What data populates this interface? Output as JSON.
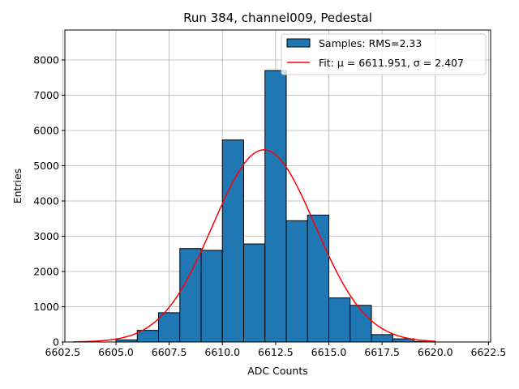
{
  "chart_data": {
    "type": "bar",
    "title": "Run 384, channel009, Pedestal",
    "xlabel": "ADC Counts",
    "ylabel": "Entries",
    "xlim": [
      6602.6,
      6622.6
    ],
    "ylim": [
      0,
      8850
    ],
    "grid": true,
    "legend_position": "top-right",
    "bin_width": 1,
    "bins": [
      {
        "left": 6605,
        "value": 60
      },
      {
        "left": 6606,
        "value": 330
      },
      {
        "left": 6607,
        "value": 830
      },
      {
        "left": 6608,
        "value": 2650
      },
      {
        "left": 6609,
        "value": 2600
      },
      {
        "left": 6610,
        "value": 5730
      },
      {
        "left": 6611,
        "value": 2780
      },
      {
        "left": 6612,
        "value": 7700
      },
      {
        "left": 6613,
        "value": 3440
      },
      {
        "left": 6614,
        "value": 3600
      },
      {
        "left": 6615,
        "value": 1250
      },
      {
        "left": 6616,
        "value": 1040
      },
      {
        "left": 6617,
        "value": 210
      },
      {
        "left": 6618,
        "value": 90
      },
      {
        "left": 6619,
        "value": 15
      }
    ],
    "fit": {
      "mu": 6611.951,
      "sigma": 2.407,
      "amplitude": 5450,
      "x_start": 6603,
      "x_end": 6620
    },
    "x_ticks": [
      {
        "value": 6602.5,
        "label": "6602.5"
      },
      {
        "value": 6605.0,
        "label": "6605.0"
      },
      {
        "value": 6607.5,
        "label": "6607.5"
      },
      {
        "value": 6610.0,
        "label": "6610.0"
      },
      {
        "value": 6612.5,
        "label": "6612.5"
      },
      {
        "value": 6615.0,
        "label": "6615.0"
      },
      {
        "value": 6617.5,
        "label": "6617.5"
      },
      {
        "value": 6620.0,
        "label": "6620.0"
      },
      {
        "value": 6622.5,
        "label": "6622.5"
      }
    ],
    "y_ticks": [
      {
        "value": 0,
        "label": "0"
      },
      {
        "value": 1000,
        "label": "1000"
      },
      {
        "value": 2000,
        "label": "2000"
      },
      {
        "value": 3000,
        "label": "3000"
      },
      {
        "value": 4000,
        "label": "4000"
      },
      {
        "value": 5000,
        "label": "5000"
      },
      {
        "value": 6000,
        "label": "6000"
      },
      {
        "value": 7000,
        "label": "7000"
      },
      {
        "value": 8000,
        "label": "8000"
      }
    ],
    "legend": {
      "samples_label": "Samples: RMS=2.33",
      "fit_label": "Fit: μ = 6611.951, σ = 2.407"
    },
    "colors": {
      "bar_fill": "#1f77b4",
      "bar_edge": "#000000",
      "fit_line": "#ff0000",
      "grid": "#b0b0b0"
    }
  }
}
